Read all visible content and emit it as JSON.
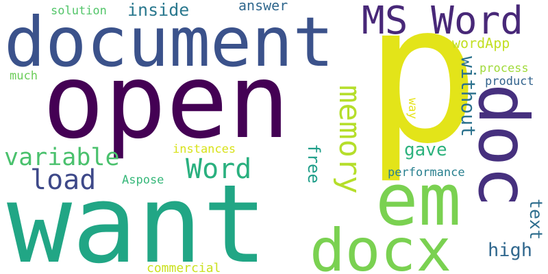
{
  "palette": {
    "dark_purple": "#440154",
    "indigo": "#46337e",
    "slate_blue": "#365c8d",
    "steel_blue": "#277f8e",
    "teal": "#1fa187",
    "green": "#4ac16d",
    "lime": "#7ad151",
    "light_green": "#a0da39",
    "yellow": "#e3e419",
    "gold": "#d2e21b"
  },
  "words": [
    {
      "text": "p",
      "color": "#e3e419"
    },
    {
      "text": "open",
      "color": "#440154"
    },
    {
      "text": "want",
      "color": "#21a685"
    },
    {
      "text": "document",
      "color": "#3b528b"
    },
    {
      "text": "doc",
      "color": "#46307e"
    },
    {
      "text": "em",
      "color": "#7ad151"
    },
    {
      "text": "docx",
      "color": "#7ad151"
    },
    {
      "text": "MS Word",
      "color": "#482878"
    },
    {
      "text": "memory",
      "color": "#b5de2b"
    },
    {
      "text": "Word",
      "color": "#2ab07f"
    },
    {
      "text": "variable",
      "color": "#4ac16d"
    },
    {
      "text": "load",
      "color": "#3e4989"
    },
    {
      "text": "without",
      "color": "#2c728e"
    },
    {
      "text": "wordApp",
      "color": "#c2df23"
    },
    {
      "text": "inside",
      "color": "#2a788e"
    },
    {
      "text": "answer",
      "color": "#31688e"
    },
    {
      "text": "solution",
      "color": "#52c569"
    },
    {
      "text": "much",
      "color": "#6ccd5a"
    },
    {
      "text": "free",
      "color": "#1f9e89"
    },
    {
      "text": "gave",
      "color": "#2db27d"
    },
    {
      "text": "instances",
      "color": "#d8e219"
    },
    {
      "text": "Aspose",
      "color": "#35b779"
    },
    {
      "text": "performance",
      "color": "#277f8e"
    },
    {
      "text": "process",
      "color": "#a0da39"
    },
    {
      "text": "product",
      "color": "#33638d"
    },
    {
      "text": "way",
      "color": "#e7e419"
    },
    {
      "text": "text",
      "color": "#2e6e8e"
    },
    {
      "text": "high",
      "color": "#31688e"
    },
    {
      "text": "commercial",
      "color": "#cae11f"
    }
  ]
}
